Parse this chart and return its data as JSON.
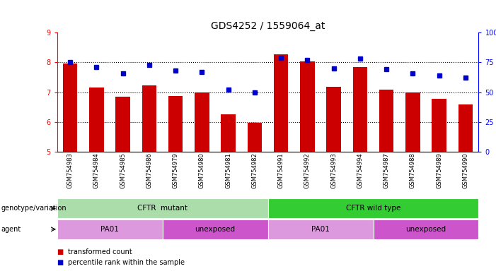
{
  "title": "GDS4252 / 1559064_at",
  "samples": [
    "GSM754983",
    "GSM754984",
    "GSM754985",
    "GSM754986",
    "GSM754979",
    "GSM754980",
    "GSM754981",
    "GSM754982",
    "GSM754991",
    "GSM754992",
    "GSM754993",
    "GSM754994",
    "GSM754987",
    "GSM754988",
    "GSM754989",
    "GSM754990"
  ],
  "bar_values": [
    7.95,
    7.15,
    6.85,
    7.22,
    6.87,
    7.0,
    6.25,
    5.97,
    8.27,
    8.03,
    7.18,
    7.85,
    7.08,
    6.98,
    6.78,
    6.58
  ],
  "percentile_values": [
    75,
    71,
    66,
    73,
    68,
    67,
    52,
    50,
    79,
    77,
    70,
    78,
    69,
    66,
    64,
    62
  ],
  "ylim_left": [
    5,
    9
  ],
  "ylim_right": [
    0,
    100
  ],
  "yticks_left": [
    5,
    6,
    7,
    8,
    9
  ],
  "yticks_right": [
    0,
    25,
    50,
    75,
    100
  ],
  "bar_color": "#cc0000",
  "dot_color": "#0000cc",
  "genotype_groups": [
    {
      "label": "CFTR  mutant",
      "start": 0,
      "end": 8,
      "color": "#aaddaa"
    },
    {
      "label": "CFTR wild type",
      "start": 8,
      "end": 16,
      "color": "#33cc33"
    }
  ],
  "agent_groups": [
    {
      "label": "PA01",
      "start": 0,
      "end": 4,
      "color": "#dd99dd"
    },
    {
      "label": "unexposed",
      "start": 4,
      "end": 8,
      "color": "#cc55cc"
    },
    {
      "label": "PA01",
      "start": 8,
      "end": 12,
      "color": "#dd99dd"
    },
    {
      "label": "unexposed",
      "start": 12,
      "end": 16,
      "color": "#cc55cc"
    }
  ],
  "legend_labels": [
    "transformed count",
    "percentile rank within the sample"
  ],
  "legend_colors": [
    "#cc0000",
    "#0000cc"
  ]
}
